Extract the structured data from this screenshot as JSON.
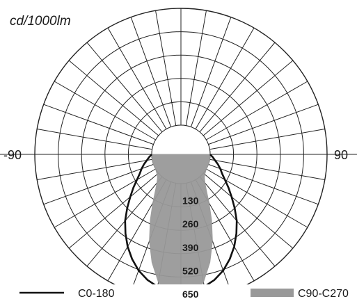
{
  "chart_data": {
    "type": "polar",
    "unit_label": "cd/1000lm",
    "angle_labels": {
      "left": "-90",
      "right": "90"
    },
    "ring_ticks": [
      130,
      260,
      390,
      520,
      650
    ],
    "ring_labels": [
      "130",
      "260",
      "390",
      "520",
      "650"
    ],
    "rmax": 650,
    "angles_deg": [
      0,
      5,
      10,
      15,
      20,
      25,
      30,
      35,
      40,
      45,
      50,
      55,
      60,
      65,
      70,
      75,
      80,
      85,
      90
    ],
    "series": [
      {
        "name": "C0-180",
        "style": "line",
        "color": "#111111",
        "values": [
          605,
          600,
          585,
          560,
          525,
          480,
          430,
          375,
          320,
          260,
          205,
          160,
          120,
          90,
          70,
          50,
          30,
          15,
          0
        ]
      },
      {
        "name": "C90-C270",
        "style": "fill",
        "color": "#999999",
        "values": [
          645,
          630,
          560,
          460,
          350,
          240,
          150,
          85,
          45,
          22,
          10,
          5,
          0,
          0,
          0,
          0,
          0,
          0,
          0
        ]
      }
    ]
  }
}
